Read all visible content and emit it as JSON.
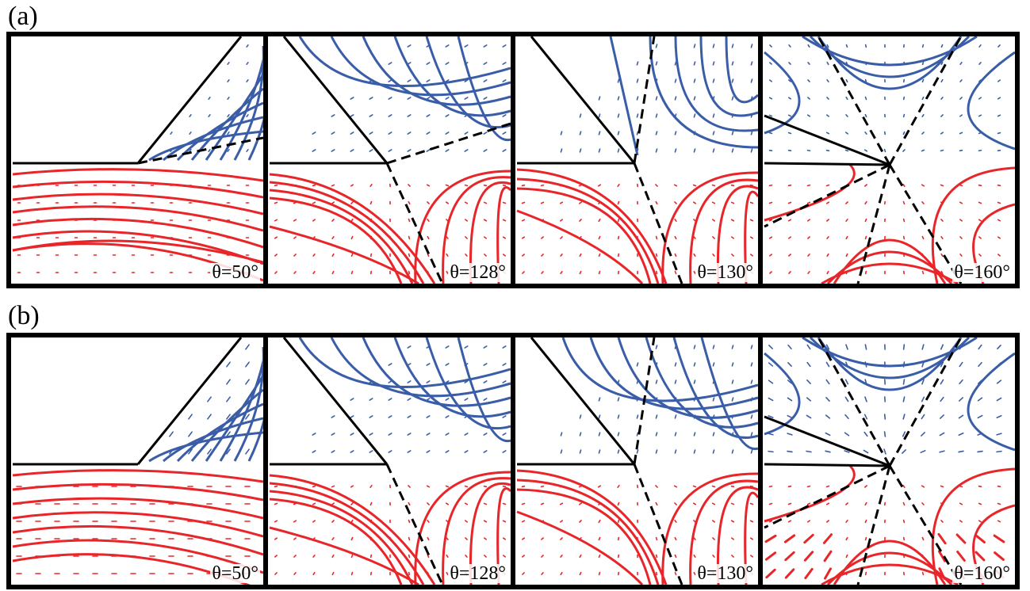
{
  "rows": [
    {
      "label": "(a)",
      "panels": [
        {
          "angle_label": "θ=50°",
          "theta_deg": 50
        },
        {
          "angle_label": "θ=128°",
          "theta_deg": 128
        },
        {
          "angle_label": "θ=130°",
          "theta_deg": 130
        },
        {
          "angle_label": "θ=160°",
          "theta_deg": 160
        }
      ]
    },
    {
      "label": "(b)",
      "panels": [
        {
          "angle_label": "θ=50°",
          "theta_deg": 50
        },
        {
          "angle_label": "θ=128°",
          "theta_deg": 128
        },
        {
          "angle_label": "θ=130°",
          "theta_deg": 130
        },
        {
          "angle_label": "θ=160°",
          "theta_deg": 160
        }
      ]
    }
  ],
  "colors": {
    "upper_flow": "#3a5da8",
    "lower_flow": "#e8262a",
    "walls": "#000000",
    "separatrix": "#000000"
  }
}
